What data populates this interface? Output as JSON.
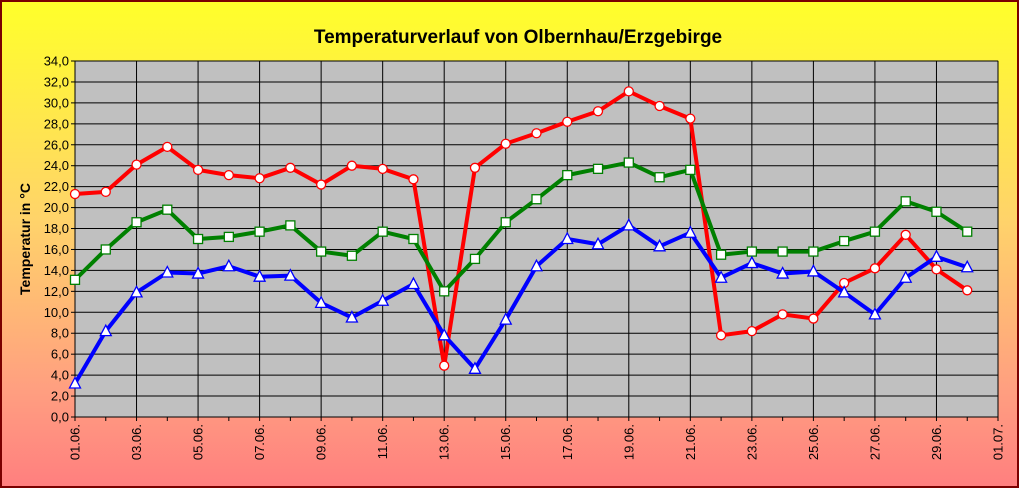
{
  "chart_data": {
    "type": "line",
    "title": "Temperaturverlauf von Olbernhau/Erzgebirge",
    "xlabel": "",
    "ylabel": "Temperatur in °C",
    "ylim": [
      0,
      34
    ],
    "ytick_labels": [
      "0,0",
      "2,0",
      "4,0",
      "6,0",
      "8,0",
      "10,0",
      "12,0",
      "14,0",
      "16,0",
      "18,0",
      "20,0",
      "22,0",
      "24,0",
      "26,0",
      "28,0",
      "30,0",
      "32,0",
      "34,0"
    ],
    "xtick_labels": [
      "01.06.",
      "03.06.",
      "05.06.",
      "07.06.",
      "09.06.",
      "11.06.",
      "13.06.",
      "15.06.",
      "17.06.",
      "19.06.",
      "21.06.",
      "23.06.",
      "25.06.",
      "27.06.",
      "29.06.",
      "01.07."
    ],
    "grid": true,
    "background_color": "#c0c0c0",
    "x": [
      1,
      2,
      3,
      4,
      5,
      6,
      7,
      8,
      9,
      10,
      11,
      12,
      13,
      14,
      15,
      16,
      17,
      18,
      19,
      20,
      21,
      22,
      23,
      24,
      25,
      26,
      27,
      28,
      29,
      30
    ],
    "x_range": [
      1,
      31
    ],
    "series": [
      {
        "color": "#ff0000",
        "marker": "circle",
        "values": [
          21.3,
          21.5,
          24.1,
          25.8,
          23.6,
          23.1,
          22.8,
          23.8,
          22.2,
          24.0,
          23.7,
          22.7,
          4.9,
          23.8,
          26.1,
          27.1,
          28.2,
          29.2,
          31.1,
          29.7,
          28.5,
          7.8,
          8.2,
          9.8,
          9.4,
          12.8,
          14.2,
          17.4,
          14.1,
          12.1
        ]
      },
      {
        "color": "#008000",
        "marker": "square",
        "values": [
          13.1,
          16.0,
          18.6,
          19.8,
          17.0,
          17.2,
          17.7,
          18.3,
          15.8,
          15.4,
          17.7,
          17.0,
          12.0,
          15.1,
          18.6,
          20.8,
          23.1,
          23.7,
          24.3,
          22.9,
          23.6,
          15.5,
          15.8,
          15.8,
          15.8,
          16.8,
          17.7,
          20.6,
          19.6,
          17.7
        ]
      },
      {
        "color": "#0000ff",
        "marker": "triangle",
        "values": [
          3.2,
          8.2,
          11.9,
          13.8,
          13.7,
          14.4,
          13.4,
          13.5,
          10.9,
          9.5,
          11.1,
          12.7,
          7.8,
          4.6,
          9.3,
          14.4,
          17.0,
          16.5,
          18.3,
          16.3,
          17.6,
          13.3,
          14.7,
          13.7,
          13.9,
          11.9,
          9.8,
          13.3,
          15.3,
          14.3
        ]
      }
    ]
  }
}
